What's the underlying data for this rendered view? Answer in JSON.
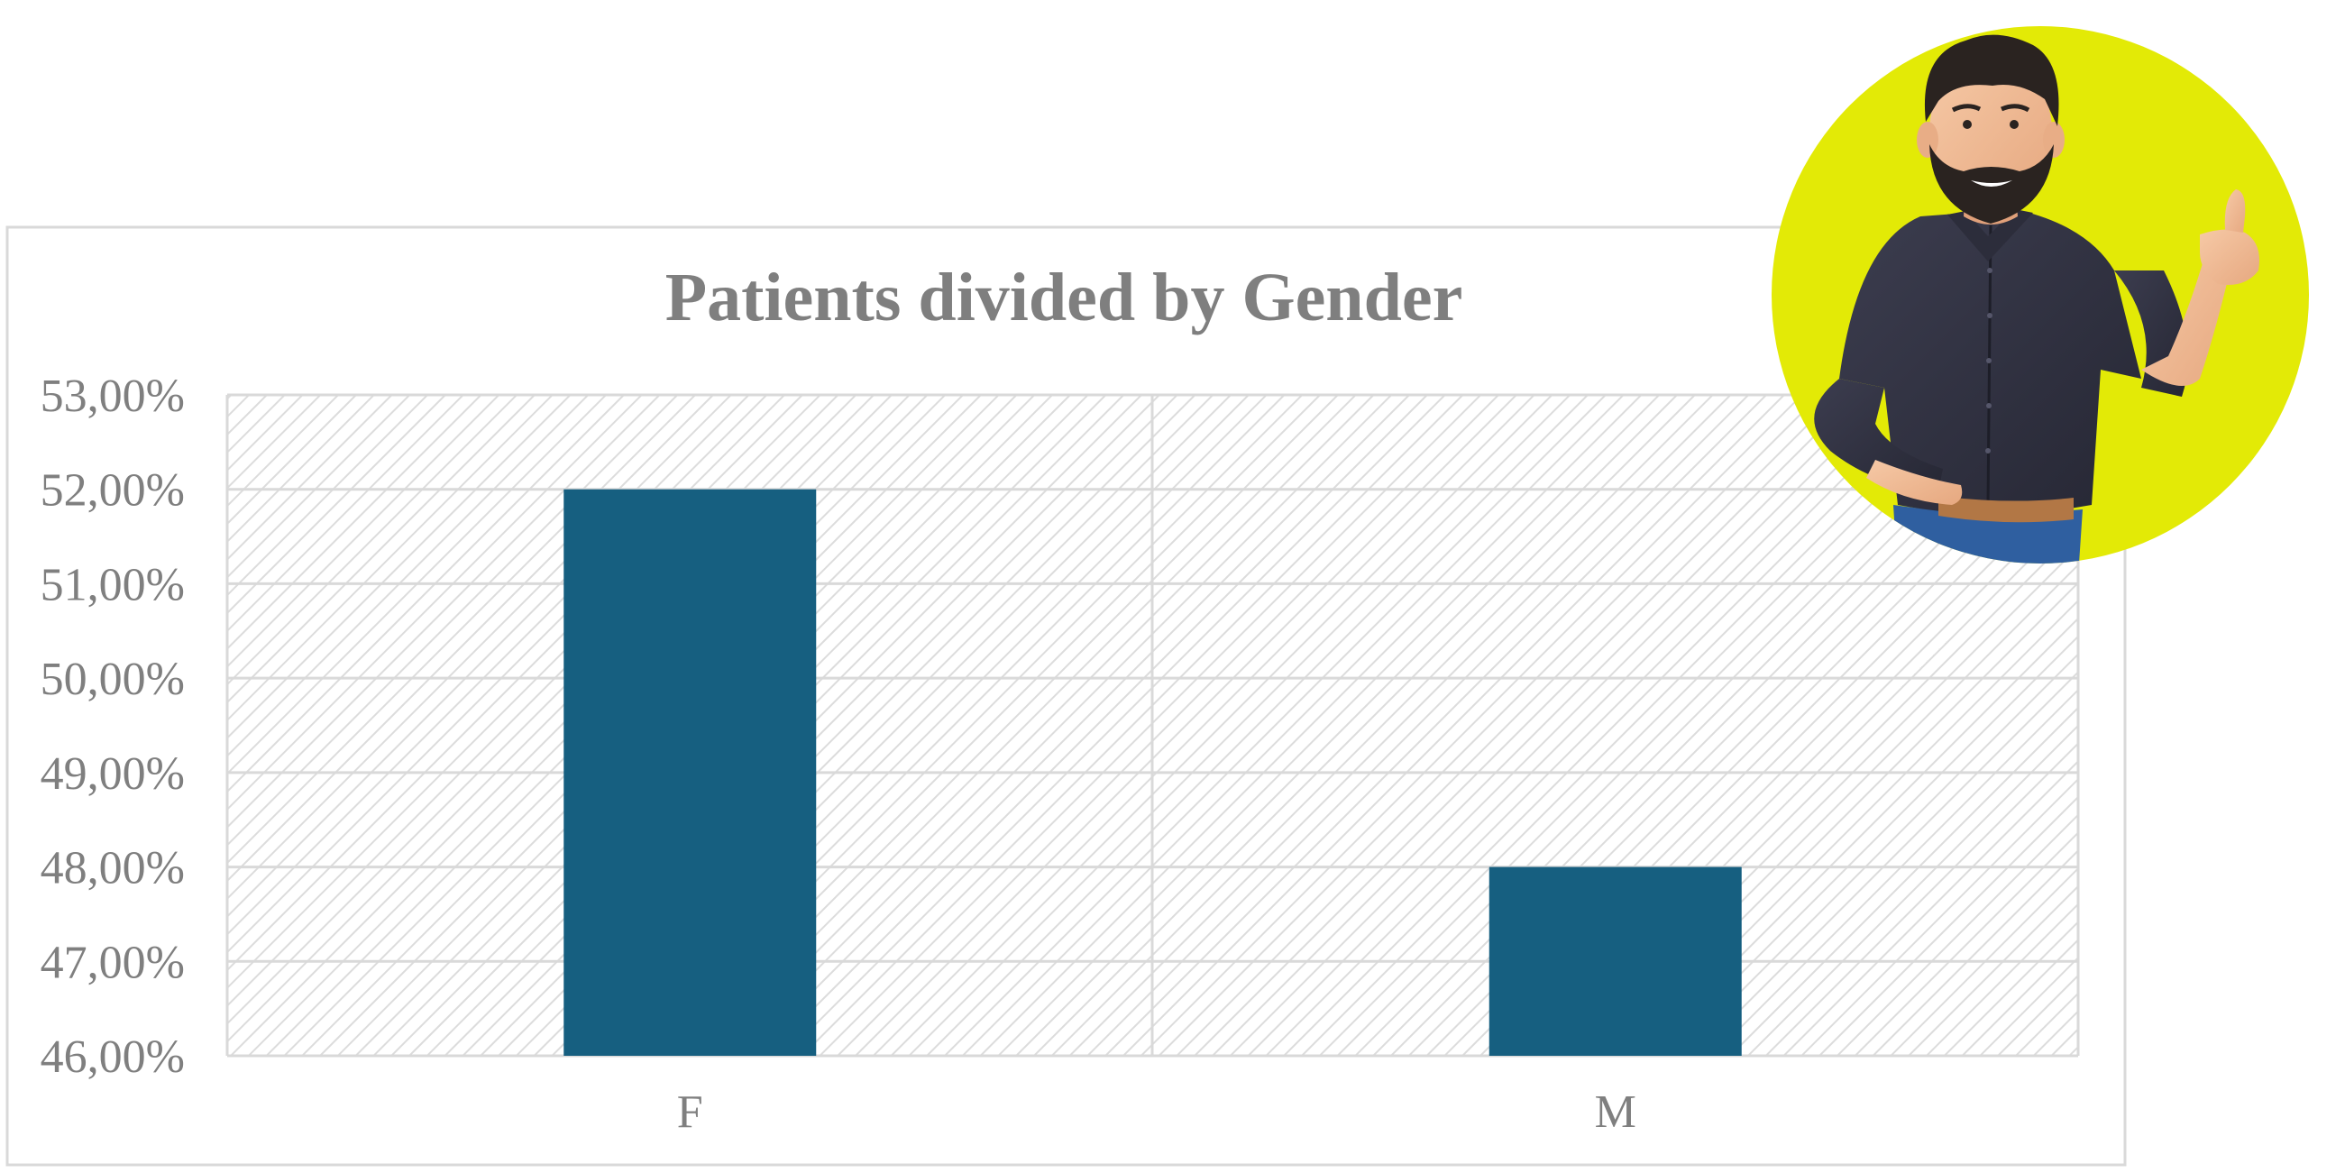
{
  "chart_data": {
    "type": "bar",
    "title": "Patients divided by Gender",
    "xlabel": "",
    "ylabel": "",
    "categories": [
      "F",
      "M"
    ],
    "values": [
      52.0,
      48.0
    ],
    "ylim": [
      46,
      53
    ],
    "yticks": [
      "46,00%",
      "47,00%",
      "48,00%",
      "49,00%",
      "50,00%",
      "51,00%",
      "52,00%",
      "53,00%"
    ],
    "grid": true,
    "legend": "none",
    "colors": {
      "bar": "#165F80",
      "title": "#7F7F7F",
      "tick_label": "#7F7F7F",
      "gridline": "#D9D9D9",
      "frame": "#D9D9D9",
      "hatch": "#D9D9D9",
      "mascot_circle": "#E3EA06"
    }
  },
  "mascot": {
    "icon": "bearded-man-thumbs-up-avatar"
  }
}
